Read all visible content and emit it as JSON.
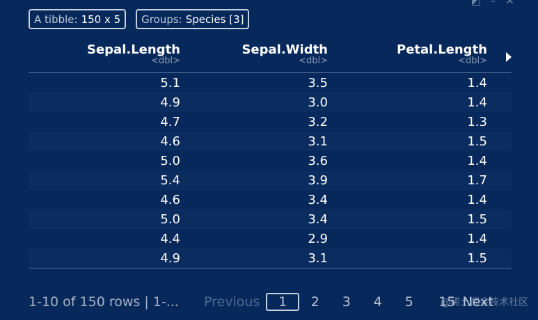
{
  "badges": {
    "tibble_label": "A tibble:",
    "tibble_value": "150 x 5",
    "groups_label": "Groups:",
    "groups_value": "Species [3]"
  },
  "table": {
    "columns": [
      {
        "name": "Sepal.Length",
        "type": "<dbl>"
      },
      {
        "name": "Sepal.Width",
        "type": "<dbl>"
      },
      {
        "name": "Petal.Length",
        "type": "<dbl>"
      }
    ],
    "rows": [
      [
        "5.1",
        "3.5",
        "1.4"
      ],
      [
        "4.9",
        "3.0",
        "1.4"
      ],
      [
        "4.7",
        "3.2",
        "1.3"
      ],
      [
        "4.6",
        "3.1",
        "1.5"
      ],
      [
        "5.0",
        "3.6",
        "1.4"
      ],
      [
        "5.4",
        "3.9",
        "1.7"
      ],
      [
        "4.6",
        "3.4",
        "1.4"
      ],
      [
        "5.0",
        "3.4",
        "1.5"
      ],
      [
        "4.4",
        "2.9",
        "1.4"
      ],
      [
        "4.9",
        "3.1",
        "1.5"
      ]
    ]
  },
  "footer": {
    "rows_info": "1-10 of 150 rows | 1-...",
    "previous_label": "Previous",
    "pages": [
      "1",
      "2",
      "3",
      "4",
      "5"
    ],
    "current_page": "1",
    "last_page": "15",
    "next_label": "Next"
  },
  "watermark": "@稀土掘金技术社区"
}
